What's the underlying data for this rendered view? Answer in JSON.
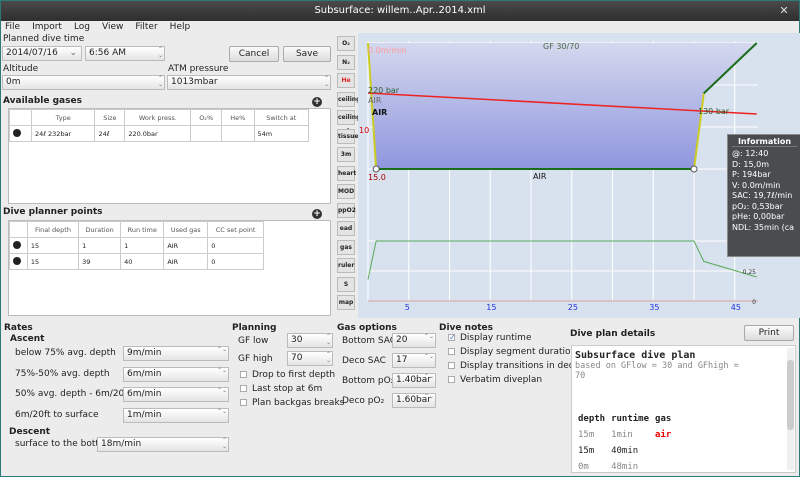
{
  "window": {
    "title": "Subsurface: willem..Apr..2014.xml",
    "close": "✕"
  },
  "menu": [
    "File",
    "Import",
    "Log",
    "View",
    "Filter",
    "Help"
  ],
  "planned": {
    "label": "Planned dive time",
    "date": "2014/07/16",
    "time": "6:56 AM",
    "cancel": "Cancel",
    "save": "Save"
  },
  "altitude": {
    "label": "Altitude",
    "value": "0m"
  },
  "atm": {
    "label": "ATM pressure",
    "value": "1013mbar"
  },
  "gases": {
    "title": "Available gases",
    "headers": [
      "Type",
      "Size",
      "Work press.",
      "O₂%",
      "He%",
      "Switch at"
    ],
    "rows": [
      [
        "24ℓ 232bar",
        "24ℓ",
        "220.0bar",
        "",
        "",
        "54m"
      ]
    ]
  },
  "points": {
    "title": "Dive planner points",
    "headers": [
      "Final depth",
      "Duration",
      "Run time",
      "Used gas",
      "CC set point"
    ],
    "rows": [
      [
        "15",
        "1",
        "1",
        "AIR",
        "0"
      ],
      [
        "15",
        "39",
        "40",
        "AIR",
        "0"
      ]
    ]
  },
  "toolbar": [
    "O₂",
    "N₂",
    "He",
    "ceiling",
    "ceiling-calc",
    "tissue",
    "3m",
    "heart",
    "MOD",
    "ppO2",
    "ead",
    "gas",
    "ruler",
    "S",
    "map"
  ],
  "profile": {
    "gf": "GF 30/70",
    "rate": "0.0m/min",
    "start_pressure": "220 bar",
    "end_pressure": "130 bar",
    "gas_label_small": "AIR",
    "gas_label": "AIR",
    "gas_bottom": "AIR",
    "depth_tick": "10",
    "max_depth": "15.0",
    "time_ticks": [
      "5",
      "15",
      "25",
      "35",
      "45"
    ],
    "po2_ticks": [
      "0.5",
      "0.25",
      "0"
    ],
    "profile": [
      [
        0,
        0
      ],
      [
        1,
        15
      ],
      [
        40,
        15
      ],
      [
        41.2,
        6
      ],
      [
        47.7,
        0
      ]
    ],
    "pressure": [
      [
        0,
        220
      ],
      [
        47.7,
        130
      ]
    ],
    "po2": [
      [
        0,
        0.18
      ],
      [
        1,
        0.5
      ],
      [
        40,
        0.5
      ],
      [
        41.2,
        0.33
      ],
      [
        47.7,
        0.2
      ]
    ],
    "colors": {
      "fill": "#8f96dd",
      "pressure": "#ee2222",
      "ascent": "#cccc22",
      "surface": "#1a6e1a",
      "po2": "#5aaa5a"
    }
  },
  "info": {
    "title": "Information",
    "lines": [
      "@: 12:40",
      "D: 15,0m",
      "P: 194bar",
      "V: 0.0m/min",
      "SAC: 19,7ℓ/min",
      "pO₂: 0,53bar",
      "pHe: 0,00bar",
      "NDL: 35min (ca"
    ]
  },
  "rates": {
    "title": "Rates",
    "ascent": "Ascent",
    "rows": [
      [
        "below 75% avg. depth",
        "9m/min"
      ],
      [
        "75%-50% avg. depth",
        "6m/min"
      ],
      [
        "50% avg. depth - 6m/20ft",
        "6m/min"
      ],
      [
        "6m/20ft to surface",
        "1m/min"
      ]
    ],
    "descent": "Descent",
    "descent_row": [
      "surface to the bottom",
      "18m/min"
    ]
  },
  "planning": {
    "title": "Planning",
    "gf_low_label": "GF low",
    "gf_low": "30",
    "gf_high_label": "GF high",
    "gf_high": "70",
    "checks": [
      {
        "label": "Drop to first depth",
        "checked": false
      },
      {
        "label": "Last stop at 6m",
        "checked": false
      },
      {
        "label": "Plan backgas breaks",
        "checked": false
      }
    ]
  },
  "gasopt": {
    "title": "Gas options",
    "rows": [
      [
        "Bottom SAC",
        "20"
      ],
      [
        "Deco SAC",
        "17"
      ],
      [
        "Bottom pO₂",
        "1.40bar"
      ],
      [
        "Deco pO₂",
        "1.60bar"
      ]
    ]
  },
  "notes": {
    "title": "Dive notes",
    "checks": [
      {
        "label": "Display runtime",
        "checked": true
      },
      {
        "label": "Display segment duration",
        "checked": false
      },
      {
        "label": "Display transitions in deco",
        "checked": false
      },
      {
        "label": "Verbatim diveplan",
        "checked": false
      }
    ]
  },
  "details": {
    "title": "Dive plan details",
    "print": "Print",
    "heading": "Subsurface dive plan",
    "based": "based on GFlow = 30 and GFhigh =",
    "based2": "70",
    "cols": [
      "depth",
      "runtime",
      "gas"
    ],
    "rows": [
      [
        "15m",
        "1min",
        "air"
      ],
      [
        "15m",
        "40min",
        ""
      ],
      [
        "0m",
        "48min",
        ""
      ]
    ]
  }
}
